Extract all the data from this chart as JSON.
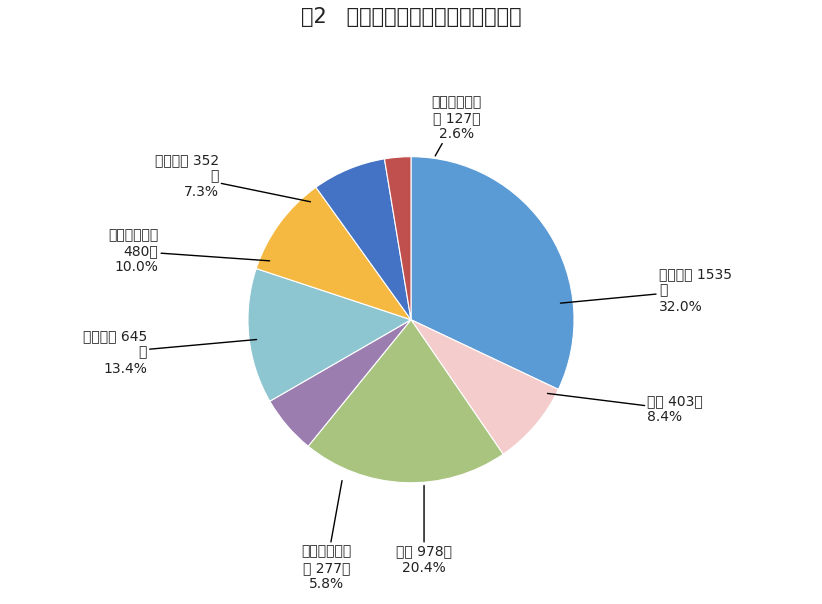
{
  "title": "图2   一季度居民人均消费支出及构成",
  "slices": [
    {
      "label": "食品烟酒 1535\n元\n32.0%",
      "value": 32.0,
      "color": "#5B9BD5"
    },
    {
      "label": "衣着 403元\n8.4%",
      "value": 8.4,
      "color": "#F4CCCC"
    },
    {
      "label": "居住 978元\n20.4%",
      "value": 20.4,
      "color": "#A9C47F"
    },
    {
      "label": "生活用品及服\n务 277元\n5.8%",
      "value": 5.8,
      "color": "#9B7DB0"
    },
    {
      "label": "交通通信 645\n元\n13.4%",
      "value": 13.4,
      "color": "#8DC5D0"
    },
    {
      "label": "教育文化娱乐\n480元\n10.0%",
      "value": 10.0,
      "color": "#F5B942"
    },
    {
      "label": "医疗保健 352\n元\n7.3%",
      "value": 7.3,
      "color": "#4472C4"
    },
    {
      "label": "其他用品和服\n务 127元\n2.6%",
      "value": 2.6,
      "color": "#C0504D"
    }
  ],
  "bg_color": "#FFFFFF",
  "title_fontsize": 15,
  "label_fontsize": 10,
  "startangle": 90
}
